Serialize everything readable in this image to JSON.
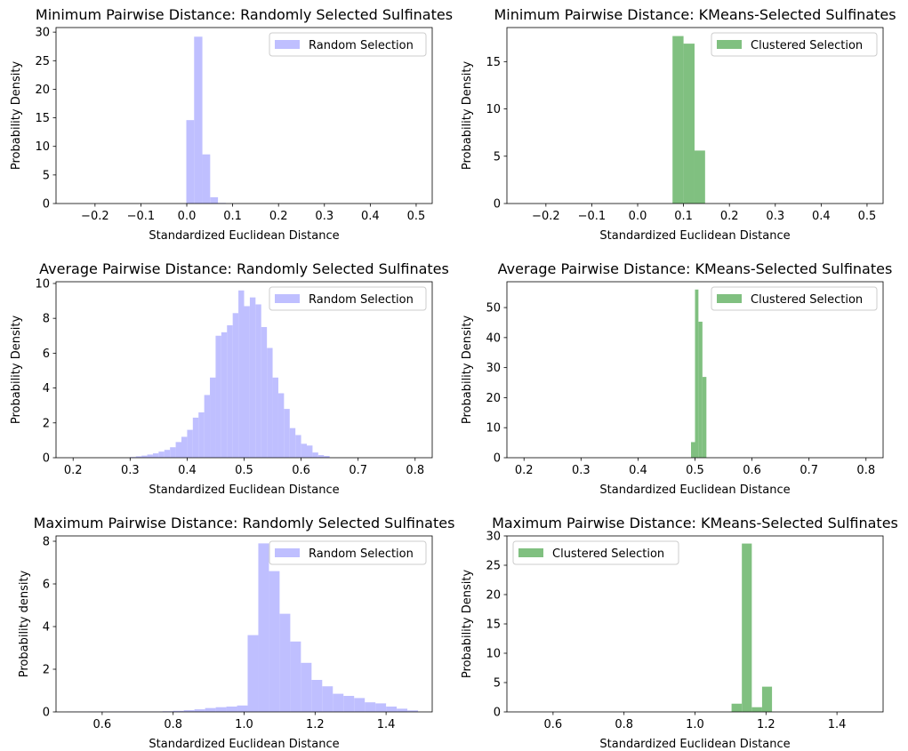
{
  "chart_data": [
    {
      "type": "bar",
      "title": "Minimum Pairwise Distance: Randomly Selected Sulfinates",
      "xlabel": "Standardized Euclidean Distance",
      "ylabel": "Probability Density",
      "xlim": [
        -0.285,
        0.535
      ],
      "ylim": [
        0,
        30.8
      ],
      "xticks": [
        -0.2,
        -0.1,
        0.0,
        0.1,
        0.2,
        0.3,
        0.4,
        0.5
      ],
      "xtick_labels": [
        "−0.2",
        "−0.1",
        "0.0",
        "0.1",
        "0.2",
        "0.3",
        "0.4",
        "0.5"
      ],
      "yticks": [
        0,
        5,
        10,
        15,
        20,
        25,
        30
      ],
      "ytick_labels": [
        "0",
        "5",
        "10",
        "15",
        "20",
        "25",
        "30"
      ],
      "legend": {
        "label": "Random Selection",
        "position": "top-right"
      },
      "color": "#bfbfff",
      "bins": [
        [
          -0.001,
          0.016,
          14.6
        ],
        [
          0.016,
          0.034,
          29.2
        ],
        [
          0.034,
          0.051,
          8.6
        ],
        [
          0.051,
          0.068,
          1.1
        ],
        [
          0.068,
          0.085,
          0.1
        ]
      ]
    },
    {
      "type": "bar",
      "title": "Minimum Pairwise Distance: KMeans-Selected Sulfinates",
      "xlabel": "Standardized Euclidean Distance",
      "ylabel": "Probability Density",
      "xlim": [
        -0.285,
        0.535
      ],
      "ylim": [
        0,
        18.6
      ],
      "xticks": [
        -0.2,
        -0.1,
        0.0,
        0.1,
        0.2,
        0.3,
        0.4,
        0.5
      ],
      "xtick_labels": [
        "−0.2",
        "−0.1",
        "0.0",
        "0.1",
        "0.2",
        "0.3",
        "0.4",
        "0.5"
      ],
      "yticks": [
        0,
        5,
        10,
        15
      ],
      "ytick_labels": [
        "0",
        "5",
        "10",
        "15"
      ],
      "legend": {
        "label": "Clustered Selection",
        "position": "top-right"
      },
      "color": "#80c080",
      "bins": [
        [
          0.076,
          0.1,
          17.7
        ],
        [
          0.1,
          0.124,
          16.9
        ],
        [
          0.124,
          0.147,
          5.6
        ]
      ]
    },
    {
      "type": "bar",
      "title": "Average Pairwise Distance: Randomly Selected Sulfinates",
      "xlabel": "Standardized Euclidean Distance",
      "ylabel": "Probability Density",
      "xlim": [
        0.17,
        0.83
      ],
      "ylim": [
        0,
        10.1
      ],
      "xticks": [
        0.2,
        0.3,
        0.4,
        0.5,
        0.6,
        0.7,
        0.8
      ],
      "xtick_labels": [
        "0.2",
        "0.3",
        "0.4",
        "0.5",
        "0.6",
        "0.7",
        "0.8"
      ],
      "yticks": [
        0,
        2,
        4,
        6,
        8,
        10
      ],
      "ytick_labels": [
        "0",
        "2",
        "4",
        "6",
        "8",
        "10"
      ],
      "legend": {
        "label": "Random Selection",
        "position": "top-right"
      },
      "color": "#bfbfff",
      "bins": [
        [
          0.3,
          0.31,
          0.04
        ],
        [
          0.31,
          0.32,
          0.08
        ],
        [
          0.32,
          0.33,
          0.12
        ],
        [
          0.33,
          0.34,
          0.18
        ],
        [
          0.34,
          0.35,
          0.25
        ],
        [
          0.35,
          0.36,
          0.35
        ],
        [
          0.36,
          0.37,
          0.45
        ],
        [
          0.37,
          0.38,
          0.6
        ],
        [
          0.38,
          0.39,
          0.9
        ],
        [
          0.39,
          0.4,
          1.2
        ],
        [
          0.4,
          0.41,
          1.6
        ],
        [
          0.41,
          0.42,
          2.3
        ],
        [
          0.42,
          0.43,
          2.6
        ],
        [
          0.43,
          0.44,
          3.6
        ],
        [
          0.44,
          0.45,
          4.6
        ],
        [
          0.45,
          0.46,
          7.0
        ],
        [
          0.46,
          0.47,
          7.2
        ],
        [
          0.47,
          0.48,
          7.6
        ],
        [
          0.48,
          0.49,
          8.3
        ],
        [
          0.49,
          0.5,
          9.6
        ],
        [
          0.5,
          0.51,
          8.7
        ],
        [
          0.51,
          0.52,
          9.2
        ],
        [
          0.52,
          0.53,
          8.8
        ],
        [
          0.53,
          0.54,
          7.5
        ],
        [
          0.54,
          0.55,
          6.3
        ],
        [
          0.55,
          0.56,
          4.6
        ],
        [
          0.56,
          0.57,
          3.7
        ],
        [
          0.57,
          0.58,
          2.8
        ],
        [
          0.58,
          0.59,
          1.7
        ],
        [
          0.59,
          0.6,
          1.3
        ],
        [
          0.6,
          0.61,
          0.8
        ],
        [
          0.61,
          0.62,
          0.7
        ],
        [
          0.62,
          0.63,
          0.3
        ],
        [
          0.63,
          0.64,
          0.15
        ],
        [
          0.64,
          0.65,
          0.1
        ]
      ]
    },
    {
      "type": "bar",
      "title": "Average Pairwise Distance: KMeans-Selected Sulfinates",
      "xlabel": "Standardized Euclidean Distance",
      "ylabel": "Probability Density",
      "xlim": [
        0.17,
        0.83
      ],
      "ylim": [
        0,
        58.6
      ],
      "xticks": [
        0.2,
        0.3,
        0.4,
        0.5,
        0.6,
        0.7,
        0.8
      ],
      "xtick_labels": [
        "0.2",
        "0.3",
        "0.4",
        "0.5",
        "0.6",
        "0.7",
        "0.8"
      ],
      "yticks": [
        0,
        10,
        20,
        30,
        40,
        50
      ],
      "ytick_labels": [
        "0",
        "10",
        "20",
        "30",
        "40",
        "50"
      ],
      "legend": {
        "label": "Clustered Selection",
        "position": "top-right"
      },
      "color": "#80c080",
      "bins": [
        [
          0.493,
          0.5,
          5.2
        ],
        [
          0.5,
          0.506,
          56.0
        ],
        [
          0.506,
          0.513,
          45.3
        ],
        [
          0.513,
          0.52,
          26.9
        ]
      ]
    },
    {
      "type": "bar",
      "title": "Maximum Pairwise Distance: Randomly Selected Sulfinates",
      "xlabel": "Standardized Euclidean Distance",
      "ylabel": "Probability density",
      "xlim": [
        0.47,
        1.53
      ],
      "ylim": [
        0,
        8.25
      ],
      "xticks": [
        0.6,
        0.8,
        1.0,
        1.2,
        1.4
      ],
      "xtick_labels": [
        "0.6",
        "0.8",
        "1.0",
        "1.2",
        "1.4"
      ],
      "yticks": [
        0,
        2,
        4,
        6,
        8
      ],
      "ytick_labels": [
        "0",
        "2",
        "4",
        "6",
        "8"
      ],
      "legend": {
        "label": "Random Selection",
        "position": "top-right"
      },
      "color": "#bfbfff",
      "bins": [
        [
          0.5,
          0.53,
          0.01
        ],
        [
          0.53,
          0.56,
          0.01
        ],
        [
          0.56,
          0.59,
          0.02
        ],
        [
          0.59,
          0.62,
          0.02
        ],
        [
          0.62,
          0.65,
          0.02
        ],
        [
          0.65,
          0.68,
          0.02
        ],
        [
          0.68,
          0.71,
          0.02
        ],
        [
          0.71,
          0.74,
          0.02
        ],
        [
          0.74,
          0.77,
          0.02
        ],
        [
          0.77,
          0.8,
          0.03
        ],
        [
          0.8,
          0.83,
          0.05
        ],
        [
          0.83,
          0.86,
          0.08
        ],
        [
          0.86,
          0.89,
          0.12
        ],
        [
          0.89,
          0.92,
          0.18
        ],
        [
          0.92,
          0.95,
          0.22
        ],
        [
          0.95,
          0.98,
          0.25
        ],
        [
          0.98,
          1.01,
          0.3
        ],
        [
          1.01,
          1.04,
          3.6
        ],
        [
          1.04,
          1.07,
          7.9
        ],
        [
          1.07,
          1.1,
          6.6
        ],
        [
          1.1,
          1.13,
          4.6
        ],
        [
          1.13,
          1.16,
          3.3
        ],
        [
          1.16,
          1.19,
          2.3
        ],
        [
          1.19,
          1.22,
          1.5
        ],
        [
          1.22,
          1.25,
          1.2
        ],
        [
          1.25,
          1.28,
          0.85
        ],
        [
          1.28,
          1.31,
          0.75
        ],
        [
          1.31,
          1.34,
          0.65
        ],
        [
          1.34,
          1.37,
          0.45
        ],
        [
          1.37,
          1.4,
          0.4
        ],
        [
          1.4,
          1.43,
          0.25
        ],
        [
          1.43,
          1.46,
          0.15
        ],
        [
          1.46,
          1.49,
          0.07
        ]
      ]
    },
    {
      "type": "bar",
      "title": "Maximum Pairwise Distance: KMeans-Selected Sulfinates",
      "xlabel": "Standardized Euclidean Distance",
      "ylabel": "Probability Density",
      "xlim": [
        0.47,
        1.53
      ],
      "ylim": [
        0,
        30.0
      ],
      "xticks": [
        0.6,
        0.8,
        1.0,
        1.2,
        1.4
      ],
      "xtick_labels": [
        "0.6",
        "0.8",
        "1.0",
        "1.2",
        "1.4"
      ],
      "yticks": [
        0,
        5,
        10,
        15,
        20,
        25,
        30
      ],
      "ytick_labels": [
        "0",
        "5",
        "10",
        "15",
        "20",
        "25",
        "30"
      ],
      "legend": {
        "label": "Clustered Selection",
        "position": "top-left"
      },
      "color": "#80c080",
      "bins": [
        [
          1.103,
          1.132,
          1.4
        ],
        [
          1.132,
          1.16,
          28.7
        ],
        [
          1.16,
          1.189,
          0.8
        ],
        [
          1.189,
          1.217,
          4.3
        ]
      ]
    }
  ]
}
